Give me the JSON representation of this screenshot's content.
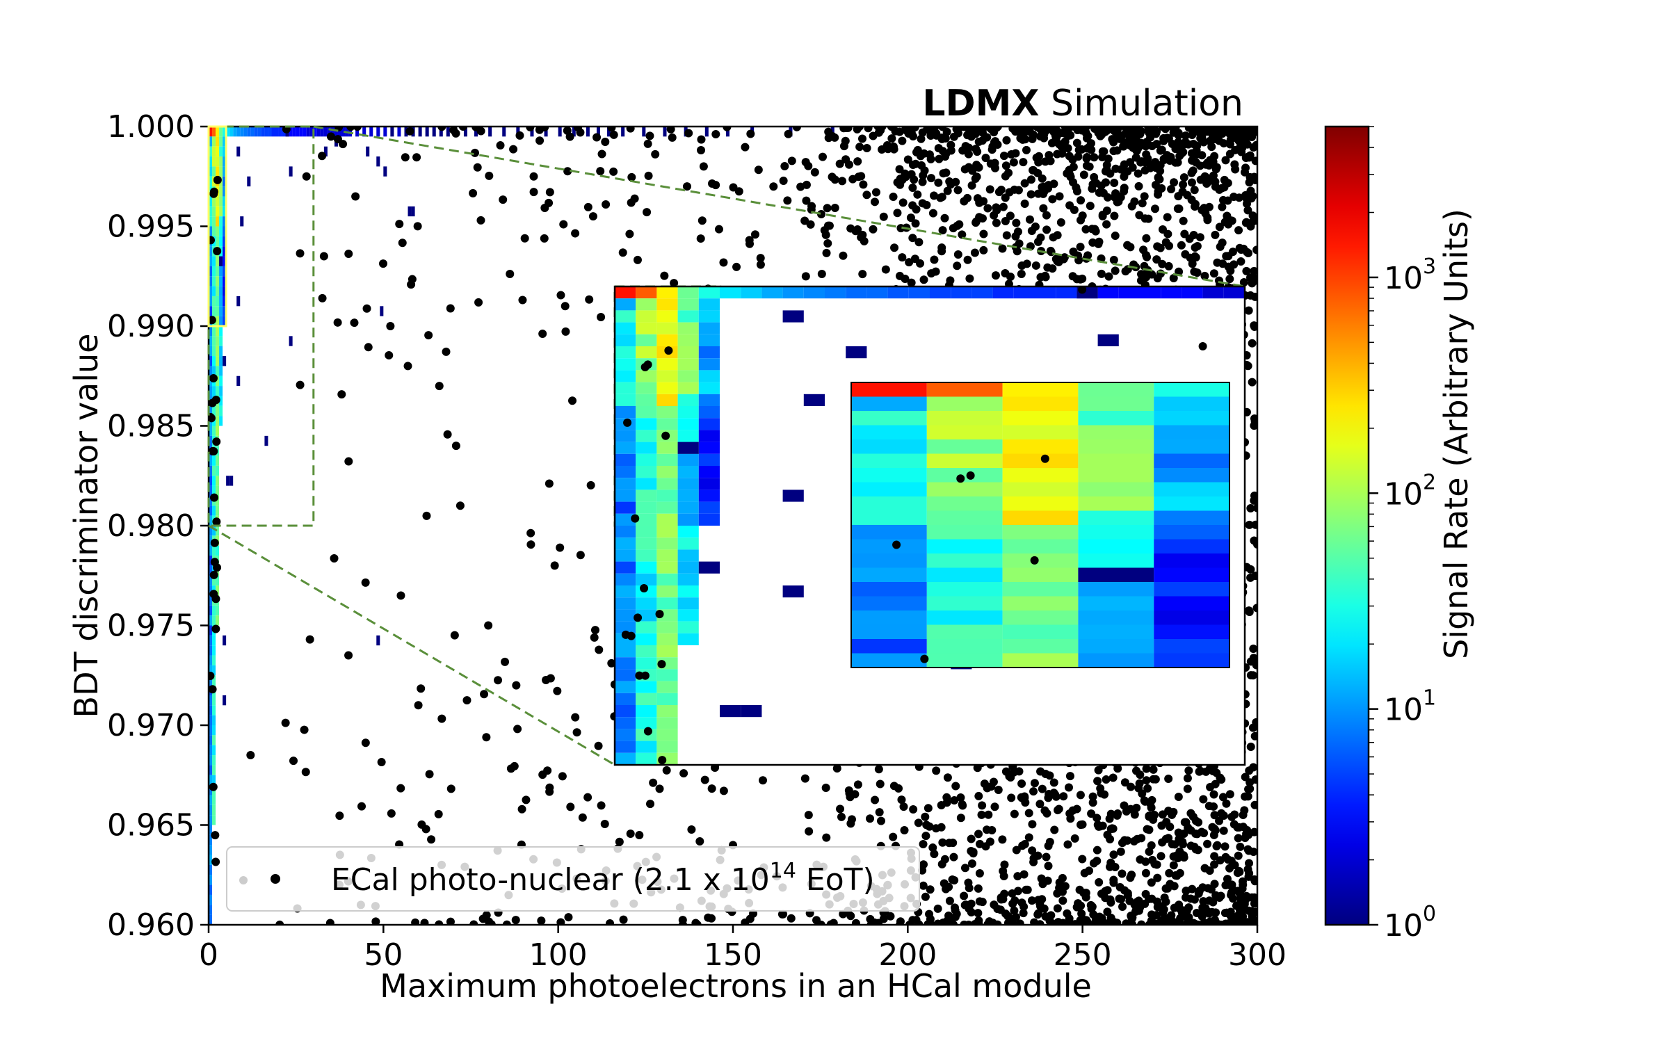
{
  "chart_data": {
    "type": "heatmap+scatter",
    "title": {
      "experiment": "LDMX",
      "suffix": " Simulation"
    },
    "xlabel": "Maximum photoelectrons in an HCal module",
    "ylabel": "BDT discriminator value",
    "xlim": [
      0,
      300
    ],
    "ylim": [
      0.96,
      1.0
    ],
    "x_ticks": [
      0,
      50,
      100,
      150,
      200,
      250,
      300
    ],
    "y_ticks": [
      0.96,
      0.965,
      0.97,
      0.975,
      0.98,
      0.985,
      0.99,
      0.995,
      1.0
    ],
    "x_tick_labels": [
      "0",
      "50",
      "100",
      "150",
      "200",
      "250",
      "300"
    ],
    "y_tick_labels": [
      "0.960",
      "0.965",
      "0.970",
      "0.975",
      "0.980",
      "0.985",
      "0.990",
      "0.995",
      "1.000"
    ],
    "colorbar": {
      "label": "Signal Rate (Arbitrary Units)",
      "scale": "log",
      "range": [
        1,
        5000
      ],
      "ticks": [
        {
          "value": 1,
          "base": "10",
          "exp": "0"
        },
        {
          "value": 10,
          "base": "10",
          "exp": "1"
        },
        {
          "value": 100,
          "base": "10",
          "exp": "2"
        },
        {
          "value": 1000,
          "base": "10",
          "exp": "3"
        }
      ]
    },
    "legend": {
      "placement": "lower-left",
      "entry": {
        "prefix": "ECal photo-nuclear (2.1 x 10",
        "exp": "14",
        "suffix": " EoT)",
        "marker_color": "#000000"
      }
    },
    "signal_heatmap": {
      "x_bin_width": 1,
      "y_bin_width": 0.0005,
      "top_row_y": 0.9995,
      "top_row_rates": [
        [
          0,
          1500
        ],
        [
          1,
          800
        ],
        [
          2,
          230
        ],
        [
          3,
          60
        ],
        [
          4,
          30
        ],
        [
          5,
          20
        ],
        [
          6,
          16
        ],
        [
          7,
          12
        ],
        [
          8,
          10
        ],
        [
          9,
          9
        ],
        [
          10,
          8
        ],
        [
          11,
          7
        ],
        [
          12,
          7
        ],
        [
          13,
          6
        ],
        [
          14,
          6
        ],
        [
          15,
          5
        ],
        [
          16,
          5
        ],
        [
          17,
          5
        ],
        [
          18,
          4
        ],
        [
          19,
          4
        ],
        [
          20,
          4
        ],
        [
          21,
          4
        ],
        [
          22,
          3
        ],
        [
          23,
          3
        ],
        [
          24,
          3
        ],
        [
          25,
          3
        ],
        [
          26,
          3
        ],
        [
          27,
          3
        ],
        [
          28,
          2
        ],
        [
          29,
          2
        ],
        [
          30,
          3
        ],
        [
          31,
          2
        ],
        [
          32,
          2
        ],
        [
          33,
          2
        ],
        [
          34,
          2
        ],
        [
          35,
          2
        ],
        [
          36,
          2
        ],
        [
          37,
          2
        ],
        [
          38,
          2
        ],
        [
          39,
          2
        ],
        [
          40,
          2
        ],
        [
          42,
          2
        ],
        [
          44,
          2
        ],
        [
          46,
          2
        ],
        [
          48,
          2
        ],
        [
          50,
          2
        ],
        [
          52,
          1
        ],
        [
          54,
          2
        ],
        [
          56,
          1
        ],
        [
          58,
          1
        ],
        [
          60,
          1
        ],
        [
          62,
          1
        ],
        [
          64,
          1
        ],
        [
          66,
          1
        ],
        [
          68,
          1
        ],
        [
          70,
          1
        ],
        [
          73,
          1
        ],
        [
          76,
          1
        ],
        [
          80,
          1
        ],
        [
          84,
          1
        ],
        [
          88,
          1
        ],
        [
          92,
          1
        ],
        [
          96,
          1
        ],
        [
          100,
          1
        ],
        [
          104,
          1
        ],
        [
          108,
          1
        ],
        [
          111,
          1
        ],
        [
          114,
          1
        ],
        [
          118,
          1
        ],
        [
          124,
          1
        ],
        [
          130,
          1
        ],
        [
          136,
          1
        ],
        [
          142,
          1
        ],
        [
          148,
          1
        ],
        [
          155,
          1
        ],
        [
          166,
          1
        ],
        [
          178,
          1
        ]
      ],
      "column_profile": [
        {
          "x": 0,
          "base_rate": 8,
          "y_min": 0.96
        },
        {
          "x": 1,
          "base_rate": 30,
          "y_min": 0.965
        },
        {
          "x": 2,
          "base_rate": 60,
          "y_min": 0.975
        },
        {
          "x": 3,
          "base_rate": 20,
          "y_min": 0.985
        },
        {
          "x": 4,
          "base_rate": 4,
          "y_min": 0.99
        }
      ],
      "isolated_cells": [
        [
          8,
          0.9985
        ],
        [
          11,
          0.997
        ],
        [
          22,
          0.9995
        ],
        [
          23,
          0.9975
        ],
        [
          33,
          0.9985
        ],
        [
          36,
          0.999
        ],
        [
          45,
          0.9985
        ],
        [
          48,
          0.998
        ],
        [
          50,
          0.9975
        ],
        [
          57,
          0.9955
        ],
        [
          58,
          0.9955
        ],
        [
          3,
          0.993
        ],
        [
          4,
          0.988
        ],
        [
          6,
          0.982
        ],
        [
          9,
          0.995
        ],
        [
          8,
          0.991
        ],
        [
          8,
          0.987
        ],
        [
          5,
          0.982
        ],
        [
          16,
          0.984
        ],
        [
          23,
          0.989
        ],
        [
          49,
          0.9905
        ],
        [
          4,
          0.974
        ],
        [
          48,
          0.974
        ],
        [
          4,
          0.971
        ]
      ]
    },
    "background_points": {
      "count": 3400,
      "seed": 7,
      "x_range": [
        0,
        300
      ],
      "dense_region_x_min": 160,
      "sparse_examples": [
        [
          28,
          0.9975
        ],
        [
          33,
          0.9935
        ],
        [
          35,
          0.9995
        ],
        [
          42,
          0.9965
        ],
        [
          52,
          0.99
        ],
        [
          57,
          0.988
        ],
        [
          60,
          0.971
        ],
        [
          66,
          0.987
        ],
        [
          72,
          0.981
        ],
        [
          55,
          0.9765
        ],
        [
          40,
          0.9735
        ],
        [
          12,
          0.9685
        ],
        [
          80,
          0.975
        ],
        [
          88,
          0.972
        ],
        [
          93,
          0.9975
        ],
        [
          99,
          0.978
        ],
        [
          102,
          0.991
        ],
        [
          110,
          0.9955
        ]
      ]
    },
    "inset": {
      "box": {
        "x_min": 0,
        "x_max": 30,
        "y_min": 0.98,
        "y_max": 1.0
      },
      "sub_inset_box": {
        "x_min": 0,
        "x_max": 5,
        "y_min": 0.99,
        "y_max": 1.0
      },
      "sub_inset_highlight": "#ffff66",
      "zoom_line_color": "#5a8f3a"
    }
  }
}
